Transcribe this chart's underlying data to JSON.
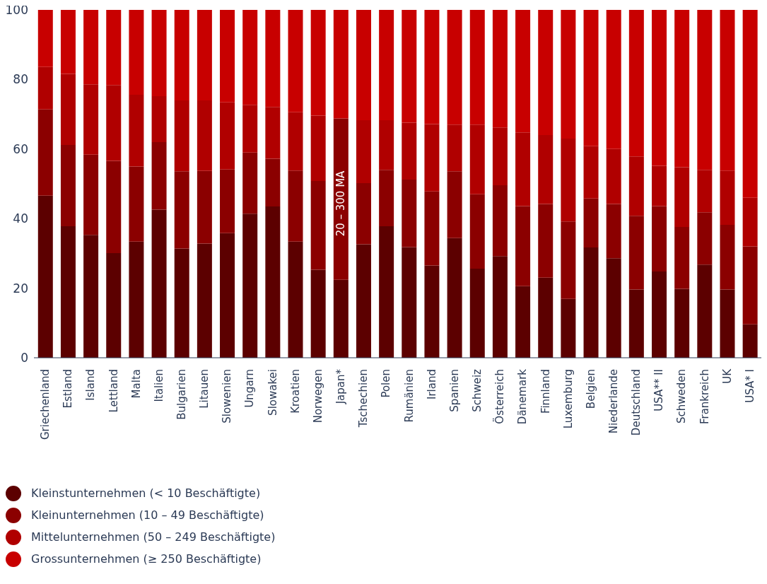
{
  "chart_data": {
    "type": "bar",
    "stacked": true,
    "categories": [
      "Griechenland",
      "Estland",
      "Island",
      "Lettland",
      "Malta",
      "Italien",
      "Bulgarien",
      "Litauen",
      "Slowenien",
      "Ungarn",
      "Slowakei",
      "Kroatien",
      "Norwegen",
      "Japan*",
      "Tschechien",
      "Polen",
      "Rumänien",
      "Irland",
      "Spanien",
      "Schweiz",
      "Österreich",
      "Dänemark",
      "Finnland",
      "Luxemburg",
      "Belgien",
      "Niederlande",
      "Deutschland",
      "USA** II",
      "Schweden",
      "Frankreich",
      "UK",
      "USA* I"
    ],
    "series": [
      {
        "name": "Kleinstunternehmen (< 10 Beschäftigte)",
        "color": "#5c0000",
        "values": [
          46.6,
          37.8,
          35.3,
          30.1,
          33.4,
          42.6,
          31.4,
          32.8,
          35.8,
          41.4,
          43.5,
          33.4,
          25.3,
          22.4,
          32.6,
          37.8,
          31.8,
          26.5,
          34.4,
          25.6,
          29.2,
          20.6,
          23.0,
          16.9,
          31.7,
          28.6,
          19.6,
          24.8,
          19.8,
          26.8,
          19.6,
          9.6
        ]
      },
      {
        "name": "Kleinunternehmen (10 – 49 Beschäftigte)",
        "color": "#8b0000",
        "values": [
          24.8,
          23.4,
          23.1,
          26.5,
          21.6,
          19.4,
          22.2,
          20.9,
          18.3,
          17.6,
          13.7,
          20.4,
          25.5,
          46.4,
          17.6,
          16.2,
          19.4,
          21.3,
          19.2,
          21.4,
          20.4,
          23.0,
          21.2,
          22.3,
          14.1,
          15.6,
          21.2,
          18.8,
          17.8,
          15.0,
          18.6,
          22.4
        ]
      },
      {
        "name": "Mittelunternehmen (50 – 249 Beschäftigte)",
        "color": "#b00000",
        "values": [
          12.2,
          20.4,
          20.2,
          21.8,
          20.6,
          13.2,
          20.4,
          20.3,
          19.3,
          13.7,
          14.9,
          16.8,
          18.8,
          null,
          18.1,
          14.3,
          16.4,
          19.4,
          13.4,
          20.0,
          16.6,
          21.2,
          19.8,
          23.8,
          15.0,
          15.8,
          17.1,
          11.6,
          17.2,
          12.2,
          15.6,
          14.0
        ]
      },
      {
        "name": "Grossunternehmen (≥ 250 Beschäftigte)",
        "color": "#c80000",
        "values": [
          16.4,
          18.4,
          21.4,
          21.6,
          24.4,
          24.8,
          26.0,
          26.0,
          26.6,
          27.3,
          27.9,
          29.4,
          30.4,
          31.2,
          31.7,
          31.7,
          32.4,
          32.8,
          33.0,
          33.0,
          33.8,
          35.2,
          36.0,
          37.0,
          39.2,
          40.0,
          42.1,
          44.8,
          45.2,
          46.0,
          46.2,
          54.0
        ]
      }
    ],
    "ylim": [
      0,
      100
    ],
    "yticks": [
      0,
      20,
      40,
      60,
      80,
      100
    ],
    "grid": false,
    "legend": "bottom left",
    "annotations": [
      "20 – 300 MA"
    ]
  }
}
